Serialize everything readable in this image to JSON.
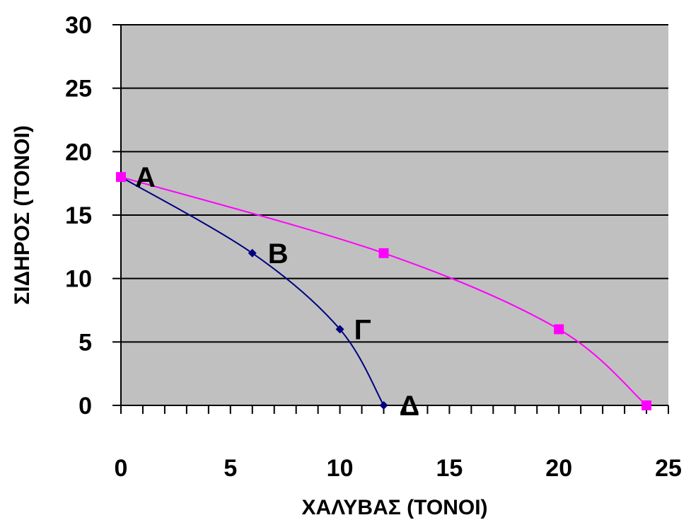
{
  "chart_data": {
    "type": "line",
    "title": "",
    "xlabel": "ΧΑΛΥΒΑΣ (ΤΟΝΟΙ)",
    "ylabel": "ΣΙΔΗΡΟΣ (ΤΟΝΟΙ)",
    "xlim": [
      0,
      25
    ],
    "ylim": [
      0,
      30
    ],
    "x_ticks": [
      0,
      5,
      10,
      15,
      20,
      25
    ],
    "y_ticks": [
      0,
      5,
      10,
      15,
      20,
      25,
      30
    ],
    "x_minor_tick_step": 1,
    "grid": "horizontal",
    "plot_background": "#c0c0c0",
    "series": [
      {
        "color": "#000080",
        "marker": "diamond",
        "smooth": true,
        "points": [
          {
            "x": 0,
            "y": 18,
            "label": "Α"
          },
          {
            "x": 6,
            "y": 12,
            "label": "Β"
          },
          {
            "x": 10,
            "y": 6,
            "label": "Γ"
          },
          {
            "x": 12,
            "y": 0,
            "label": "Δ"
          }
        ]
      },
      {
        "color": "#ff00ff",
        "marker": "square",
        "smooth": true,
        "points": [
          {
            "x": 0,
            "y": 18
          },
          {
            "x": 12,
            "y": 12
          },
          {
            "x": 20,
            "y": 6
          },
          {
            "x": 24,
            "y": 0
          }
        ]
      }
    ]
  }
}
